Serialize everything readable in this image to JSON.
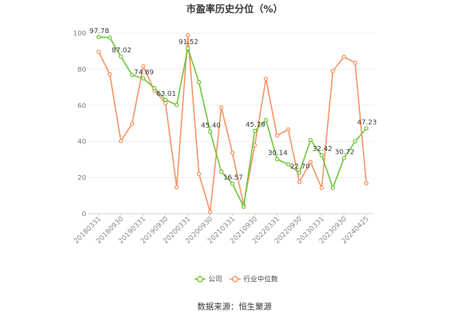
{
  "source_note": "数据来源：恒生聚源",
  "chart_data": {
    "type": "line",
    "title": "市盈率历史分位（%）",
    "xlabel": "",
    "ylabel": "",
    "ylim": [
      0,
      100
    ],
    "yticks": [
      0,
      20,
      40,
      60,
      80,
      100
    ],
    "x_tick_labels": [
      "20180331",
      "20180930",
      "20190331",
      "20190930",
      "20200331",
      "20200930",
      "20210331",
      "20210930",
      "20220331",
      "20220930",
      "20230331",
      "20230930",
      "20240425"
    ],
    "grid": true,
    "legend_position": "bottom-center",
    "series": [
      {
        "name": "公司",
        "color": "#6cc436",
        "values": [
          97.78,
          97.5,
          87.02,
          76.8,
          74.89,
          69.5,
          63.01,
          60.2,
          91.52,
          72.8,
          45.4,
          23.2,
          16.57,
          3.8,
          45.79,
          51.8,
          30.14,
          27.2,
          22.7,
          40.8,
          32.42,
          14.3,
          30.72,
          40.0,
          47.23
        ],
        "labels": {
          "0": "97.78",
          "2": "87.02",
          "4": "74.89",
          "6": "63.01",
          "8": "91.52",
          "10": "45.40",
          "12": "16.57",
          "14": "45.79",
          "16": "30.14",
          "18": "22.70",
          "20": "32.42",
          "22": "30.72",
          "24": "47.23"
        }
      },
      {
        "name": "行业中位数",
        "color": "#f4915f",
        "values": [
          89.6,
          77.2,
          40.2,
          49.8,
          81.6,
          68.2,
          61.2,
          14.6,
          98.8,
          22.0,
          1.0,
          58.8,
          33.6,
          4.8,
          37.8,
          74.6,
          43.2,
          46.6,
          17.6,
          28.6,
          14.2,
          79.0,
          86.8,
          83.6,
          16.8
        ]
      }
    ]
  }
}
